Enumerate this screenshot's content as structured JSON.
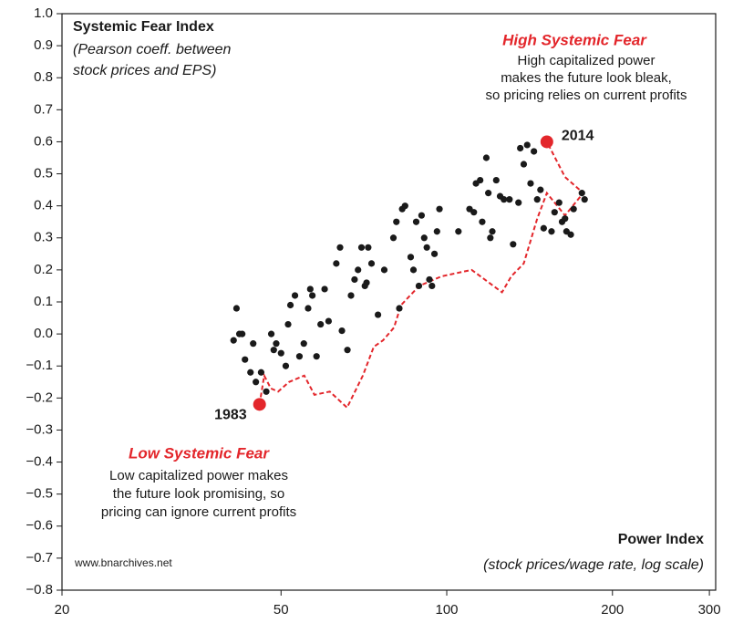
{
  "chart_data": {
    "type": "scatter",
    "title": "Systemic Fear Index",
    "subtitle": [
      "(Pearson coeff. between",
      "stock prices and EPS)"
    ],
    "x_label": "Power Index",
    "x_sublabel": "(stock prices/wage rate, log scale)",
    "source": "www.bnarchives.net",
    "annotations": [
      {
        "title": "High Systemic Fear",
        "lines": [
          "High capitalized power",
          "makes the future look bleak,",
          "so pricing relies on current profits"
        ]
      },
      {
        "title": "Low Systemic Fear",
        "lines": [
          "Low capitalized power makes",
          "the future look promising, so",
          "pricing can ignore current profits"
        ]
      }
    ],
    "xscale": "log",
    "xlim": [
      20,
      308
    ],
    "xticks": [
      20,
      50,
      100,
      200,
      300
    ],
    "ylim": [
      -0.8,
      1.0
    ],
    "yticks": [
      {
        "value": 1.0,
        "label": "1.0"
      },
      {
        "value": 0.9,
        "label": "0.9"
      },
      {
        "value": 0.8,
        "label": "0.8"
      },
      {
        "value": 0.7,
        "label": "0.7"
      },
      {
        "value": 0.6,
        "label": "0.6"
      },
      {
        "value": 0.5,
        "label": "0.5"
      },
      {
        "value": 0.4,
        "label": "0.4"
      },
      {
        "value": 0.3,
        "label": "0.3"
      },
      {
        "value": 0.2,
        "label": "0.2"
      },
      {
        "value": 0.1,
        "label": "0.1"
      },
      {
        "value": 0.0,
        "label": "0.0"
      },
      {
        "value": -0.1,
        "label": "−0.1"
      },
      {
        "value": -0.2,
        "label": "−0.2"
      },
      {
        "value": -0.3,
        "label": "−0.3"
      },
      {
        "value": -0.4,
        "label": "−0.4"
      },
      {
        "value": -0.5,
        "label": "−0.5"
      },
      {
        "value": -0.6,
        "label": "−0.6"
      },
      {
        "value": -0.7,
        "label": "−0.7"
      },
      {
        "value": -0.8,
        "label": "−0.8"
      }
    ],
    "points": {
      "color": "#1a1a1a",
      "x": [
        41,
        41.5,
        42,
        42.5,
        43,
        44,
        44.5,
        45,
        46,
        47,
        48,
        48.5,
        49,
        50,
        51,
        51.5,
        52,
        53,
        54,
        55,
        56,
        56.5,
        57,
        58,
        59,
        60,
        61,
        63,
        64,
        64.5,
        66,
        67,
        68,
        69,
        70,
        71,
        71.5,
        72,
        73,
        75,
        77,
        80,
        81,
        82,
        83,
        84,
        86,
        87,
        88,
        89,
        90,
        91,
        92,
        93,
        94,
        95,
        96,
        97,
        105,
        110,
        112,
        113,
        115,
        116,
        118,
        119,
        120,
        121,
        123,
        125,
        127,
        130,
        132,
        135,
        136,
        138,
        140,
        142,
        144,
        146,
        148,
        150,
        155,
        157,
        160,
        162,
        164,
        165,
        168,
        170,
        176,
        178
      ],
      "values": [
        -0.02,
        0.08,
        0,
        0,
        -0.08,
        -0.12,
        -0.03,
        -0.15,
        -0.12,
        -0.18,
        0.0,
        -0.05,
        -0.03,
        -0.06,
        -0.1,
        0.03,
        0.09,
        0.12,
        -0.07,
        -0.03,
        0.08,
        0.14,
        0.12,
        -0.07,
        0.03,
        0.14,
        0.04,
        0.22,
        0.27,
        0.01,
        -0.05,
        0.12,
        0.17,
        0.2,
        0.27,
        0.15,
        0.16,
        0.27,
        0.22,
        0.06,
        0.2,
        0.3,
        0.35,
        0.08,
        0.39,
        0.4,
        0.24,
        0.2,
        0.35,
        0.15,
        0.37,
        0.3,
        0.27,
        0.17,
        0.15,
        0.25,
        0.32,
        0.39,
        0.32,
        0.39,
        0.38,
        0.47,
        0.48,
        0.35,
        0.55,
        0.44,
        0.3,
        0.32,
        0.48,
        0.43,
        0.42,
        0.42,
        0.28,
        0.41,
        0.58,
        0.53,
        0.59,
        0.47,
        0.57,
        0.42,
        0.45,
        0.33,
        0.32,
        0.38,
        0.41,
        0.35,
        0.36,
        0.32,
        0.31,
        0.39,
        0.44,
        0.42
      ]
    },
    "path": {
      "color": "#e3262b",
      "line": "dashed",
      "x": [
        45.7,
        46.6,
        47.9,
        49.4,
        51.7,
        55.1,
        57.5,
        61.3,
        65.9,
        70.4,
        73.7,
        76.6,
        80.2,
        82.6,
        89.1,
        97.9,
        111,
        126,
        131,
        138,
        146,
        152,
        164,
        177,
        164,
        152
      ],
      "values": [
        -0.22,
        -0.13,
        -0.17,
        -0.18,
        -0.15,
        -0.13,
        -0.19,
        -0.18,
        -0.23,
        -0.13,
        -0.04,
        -0.02,
        0.02,
        0.09,
        0.15,
        0.18,
        0.2,
        0.13,
        0.18,
        0.22,
        0.36,
        0.44,
        0.37,
        0.44,
        0.49,
        0.6
      ]
    },
    "highlights": {
      "color": "#e3262b",
      "labels": [
        "1983",
        "2014"
      ],
      "x": [
        45.7,
        152
      ],
      "values": [
        -0.22,
        0.6
      ]
    }
  }
}
